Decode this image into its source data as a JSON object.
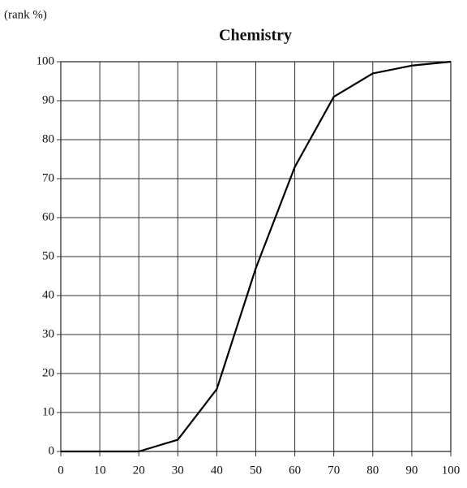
{
  "chart_data": {
    "type": "line",
    "title": "Chemistry",
    "y_label": "(rank %)",
    "x": [
      0,
      10,
      20,
      30,
      40,
      50,
      60,
      70,
      80,
      90,
      100
    ],
    "series": [
      {
        "name": "Chemistry",
        "color": "#000000",
        "values": [
          0,
          0,
          0,
          3,
          16,
          47,
          73,
          91,
          97,
          99,
          100
        ]
      }
    ],
    "xlim": [
      0,
      100
    ],
    "xticks": [
      0,
      10,
      20,
      30,
      40,
      50,
      60,
      70,
      80,
      90,
      100
    ],
    "ylim": [
      0,
      100
    ],
    "yticks": [
      0,
      10,
      20,
      30,
      40,
      50,
      60,
      70,
      80,
      90,
      100
    ],
    "grid": true
  }
}
